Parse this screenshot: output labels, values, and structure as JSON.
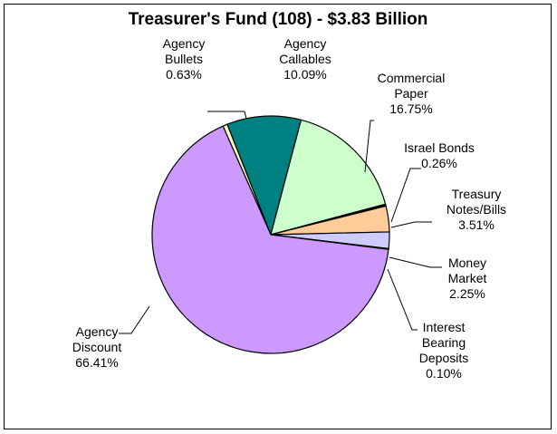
{
  "chart_data": {
    "type": "pie",
    "title": "Treasurer's Fund (108) - $3.83 Billion",
    "start_angle_deg": -113.8,
    "direction": "clockwise",
    "slices": [
      {
        "lines": [
          "Agency",
          "Bullets"
        ],
        "pct_text": "0.63%",
        "value": 0.63,
        "color": "#FFFFCC"
      },
      {
        "lines": [
          "Agency",
          "Callables"
        ],
        "pct_text": "10.09%",
        "value": 10.09,
        "color": "#008080"
      },
      {
        "lines": [
          "Commercial",
          "Paper"
        ],
        "pct_text": "16.75%",
        "value": 16.75,
        "color": "#CCFFCC"
      },
      {
        "lines": [
          "Israel Bonds"
        ],
        "pct_text": "0.26%",
        "value": 0.26,
        "color": "#000000"
      },
      {
        "lines": [
          "Treasury",
          "Notes/Bills"
        ],
        "pct_text": "3.51%",
        "value": 3.51,
        "color": "#FFCC99"
      },
      {
        "lines": [
          "Money",
          "Market"
        ],
        "pct_text": "2.25%",
        "value": 2.25,
        "color": "#CCCCFF"
      },
      {
        "lines": [
          "Interest",
          "Bearing",
          "Deposits"
        ],
        "pct_text": "0.10%",
        "value": 0.1,
        "color": "#000000"
      },
      {
        "lines": [
          "Agency",
          "Discount"
        ],
        "pct_text": "66.41%",
        "value": 66.41,
        "color": "#CC99FF"
      }
    ]
  }
}
